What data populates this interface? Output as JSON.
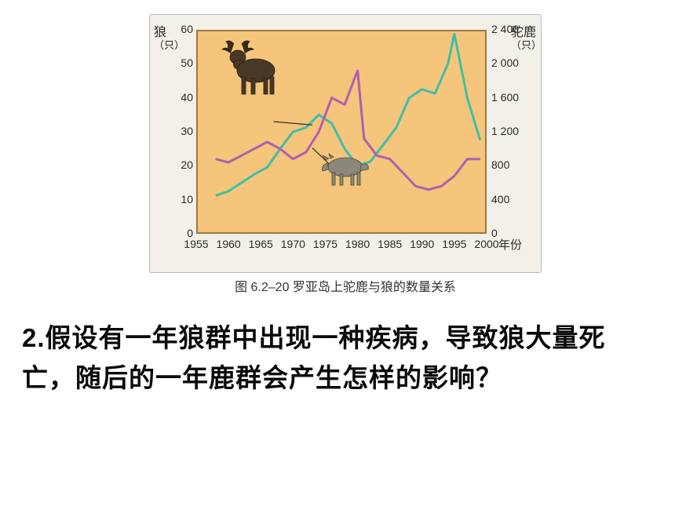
{
  "chart": {
    "type": "line-dual-y",
    "background_color": "#f4c57a",
    "frame_background": "#f2f0e8",
    "border_color": "#a07840",
    "left_axis": {
      "label_vert": "狼",
      "label_unit": "（只）",
      "ytick_labels": [
        "0",
        "10",
        "20",
        "30",
        "40",
        "50",
        "60"
      ],
      "ylim_min": 0,
      "ylim_max": 60
    },
    "right_axis": {
      "label_vert": "驼鹿",
      "label_unit": "（只）",
      "ytick_labels": [
        "0",
        "400",
        "800",
        "1 200",
        "1 600",
        "2 000",
        "2 400"
      ],
      "ylim_min": 0,
      "ylim_max": 2400
    },
    "x_axis": {
      "xtick_labels": [
        "1955",
        "1960",
        "1965",
        "1970",
        "1975",
        "1980",
        "1985",
        "1990",
        "1995",
        "2000"
      ],
      "xlim_min": 1955,
      "xlim_max": 2000,
      "label": "年份"
    },
    "series": {
      "wolf": {
        "color": "#b05fb0",
        "line_width": 3,
        "points_year": [
          1958,
          1960,
          1962,
          1964,
          1966,
          1968,
          1970,
          1972,
          1974,
          1976,
          1978,
          1980,
          1981,
          1983,
          1985,
          1987,
          1989,
          1991,
          1993,
          1995,
          1997,
          1999
        ],
        "points_value": [
          22,
          21,
          23,
          25,
          27,
          25,
          22,
          24,
          30,
          40,
          38,
          48,
          28,
          23,
          22,
          18,
          14,
          13,
          14,
          17,
          22,
          22
        ]
      },
      "moose": {
        "color": "#3fbfa8",
        "line_width": 3,
        "points_year": [
          1958,
          1960,
          1962,
          1964,
          1966,
          1968,
          1970,
          1972,
          1974,
          1976,
          1978,
          1980,
          1982,
          1984,
          1986,
          1988,
          1990,
          1992,
          1994,
          1995,
          1997,
          1999
        ],
        "points_value": [
          450,
          500,
          600,
          700,
          780,
          1000,
          1200,
          1250,
          1400,
          1300,
          1000,
          800,
          850,
          1050,
          1250,
          1600,
          1700,
          1650,
          2000,
          2350,
          1600,
          1100
        ]
      }
    },
    "moose_icon": {
      "name": "moose-icon",
      "leader_to": [
        1973,
        32
      ]
    },
    "wolf_icon": {
      "name": "wolf-icon",
      "leader_to": [
        1973,
        1010
      ]
    },
    "caption": "图 6.2–20  罗亚岛上驼鹿与狼的数量关系"
  },
  "question": {
    "number": "2.",
    "text": "假设有一年狼群中出现一种疾病，导致狼大量死亡，随后的一年鹿群会产生怎样的影响？"
  }
}
